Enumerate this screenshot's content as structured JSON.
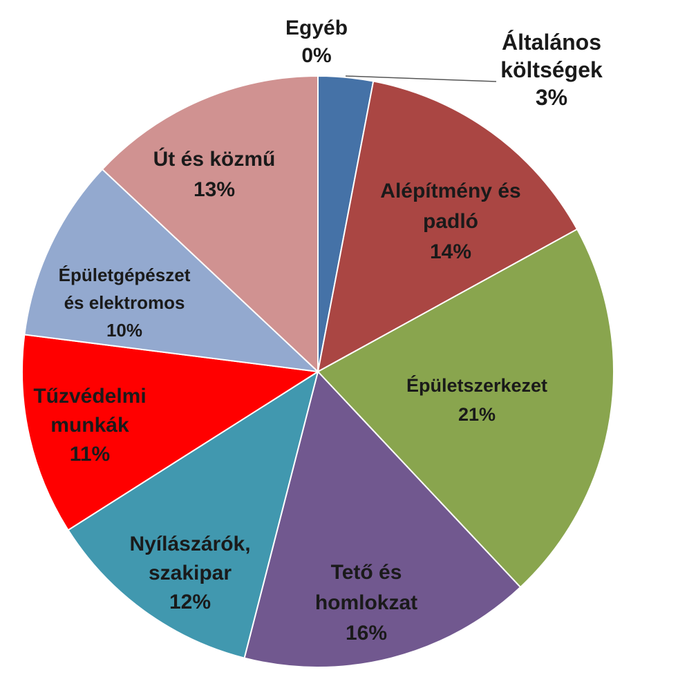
{
  "chart_data": {
    "type": "pie",
    "title": "",
    "slices": [
      {
        "label_lines": [
          "Általános",
          "költségek"
        ],
        "pct_label": "3%",
        "value": 3,
        "color": "#4572A7"
      },
      {
        "label_lines": [
          "Alépítmény és",
          "padló"
        ],
        "pct_label": "14%",
        "value": 14,
        "color": "#AA4643"
      },
      {
        "label_lines": [
          "Épületszerkezet"
        ],
        "pct_label": "21%",
        "value": 21,
        "color": "#89A54E"
      },
      {
        "label_lines": [
          "Tető és",
          "homlokzat"
        ],
        "pct_label": "16%",
        "value": 16,
        "color": "#71588F"
      },
      {
        "label_lines": [
          "Nyílászárók,",
          "szakipar"
        ],
        "pct_label": "12%",
        "value": 12,
        "color": "#4198AF"
      },
      {
        "label_lines": [
          "Tűzvédelmi",
          "munkák"
        ],
        "pct_label": "11%",
        "value": 11,
        "color": "#FF0000"
      },
      {
        "label_lines": [
          "Épületgépészet",
          "és elektromos"
        ],
        "pct_label": "10%",
        "value": 10,
        "color": "#93A9CF"
      },
      {
        "label_lines": [
          "Út és közmű"
        ],
        "pct_label": "13%",
        "value": 13,
        "color": "#D09291"
      },
      {
        "label_lines": [
          "Egyéb"
        ],
        "pct_label": "0%",
        "value": 0,
        "color": "#B9CD96"
      }
    ]
  }
}
